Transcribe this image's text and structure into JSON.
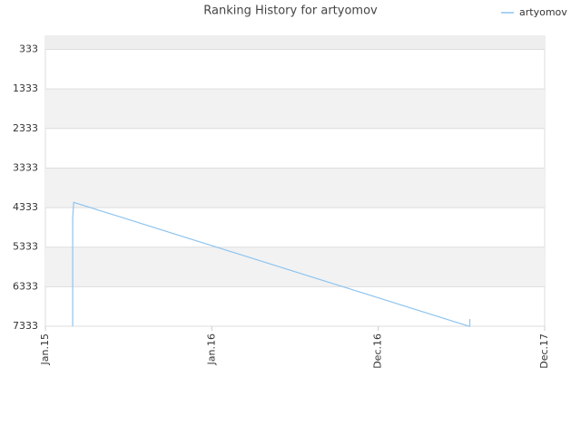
{
  "chart_data": {
    "type": "line",
    "title": "Ranking History for artyomov",
    "xlim": [
      0,
      3
    ],
    "xticks": [
      {
        "value": 0,
        "label": "Jan.15"
      },
      {
        "value": 1,
        "label": "Jan.16"
      },
      {
        "value": 2,
        "label": "Dec.16"
      },
      {
        "value": 3,
        "label": "Dec.17"
      }
    ],
    "ylim": [
      7333,
      0
    ],
    "yticks": [
      333,
      1333,
      2333,
      3333,
      4333,
      5333,
      6333,
      7333
    ],
    "grid": true,
    "legend": "top-right",
    "series": [
      {
        "name": "artyomov",
        "color": "#8ec4ef",
        "x": [
          0.164,
          0.164,
          0.17,
          2.545,
          2.55,
          2.55
        ],
        "values": [
          7333,
          4600,
          4200,
          7333,
          7333,
          7150
        ]
      }
    ]
  }
}
